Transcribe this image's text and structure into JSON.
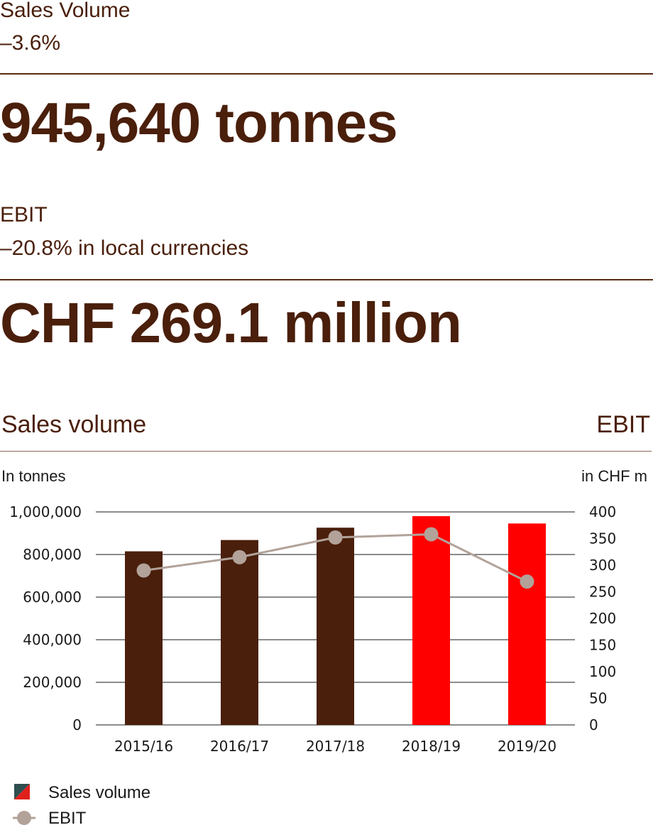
{
  "kpis": {
    "sales_volume": {
      "label": "Sales Volume",
      "change": "–3.6%",
      "value": "945,640 tonnes"
    },
    "ebit": {
      "label": "EBIT",
      "change": "–20.8% in local currencies",
      "value": "CHF 269.1 million"
    }
  },
  "chart_header": {
    "left_title": "Sales volume",
    "right_title": "EBIT",
    "left_unit": "In tonnes",
    "right_unit": "in CHF m"
  },
  "legend": {
    "bars_label": "Sales volume",
    "line_label": "EBIT"
  },
  "colors": {
    "brown": "#4a1f0b",
    "red": "#ff0000",
    "line": "#b2a299"
  },
  "chart_data": {
    "type": "bar",
    "categories": [
      "2015/16",
      "2016/17",
      "2017/18",
      "2018/19",
      "2019/20"
    ],
    "series": [
      {
        "name": "Sales volume",
        "axis": "left",
        "type": "bar",
        "values": [
          815000,
          868000,
          926000,
          980000,
          945640
        ],
        "colors": [
          "#4a1f0b",
          "#4a1f0b",
          "#4a1f0b",
          "#ff0000",
          "#ff0000"
        ]
      },
      {
        "name": "EBIT",
        "axis": "right",
        "type": "line",
        "values": [
          290,
          315,
          352,
          358,
          269.1
        ]
      }
    ],
    "left_axis": {
      "min": 0,
      "max": 1000000,
      "ticks": [
        0,
        200000,
        400000,
        600000,
        800000,
        1000000
      ],
      "tick_labels": [
        "0",
        "200,000",
        "400,000",
        "600,000",
        "800,000",
        "1,000,000"
      ]
    },
    "right_axis": {
      "min": 0,
      "max": 400,
      "ticks": [
        0,
        50,
        100,
        150,
        200,
        250,
        300,
        350,
        400
      ],
      "tick_labels": [
        "0",
        "50",
        "100",
        "150",
        "200",
        "250",
        "300",
        "350",
        "400"
      ]
    },
    "xlabel": "",
    "ylabel": "In tonnes",
    "y2label": "in CHF m"
  }
}
